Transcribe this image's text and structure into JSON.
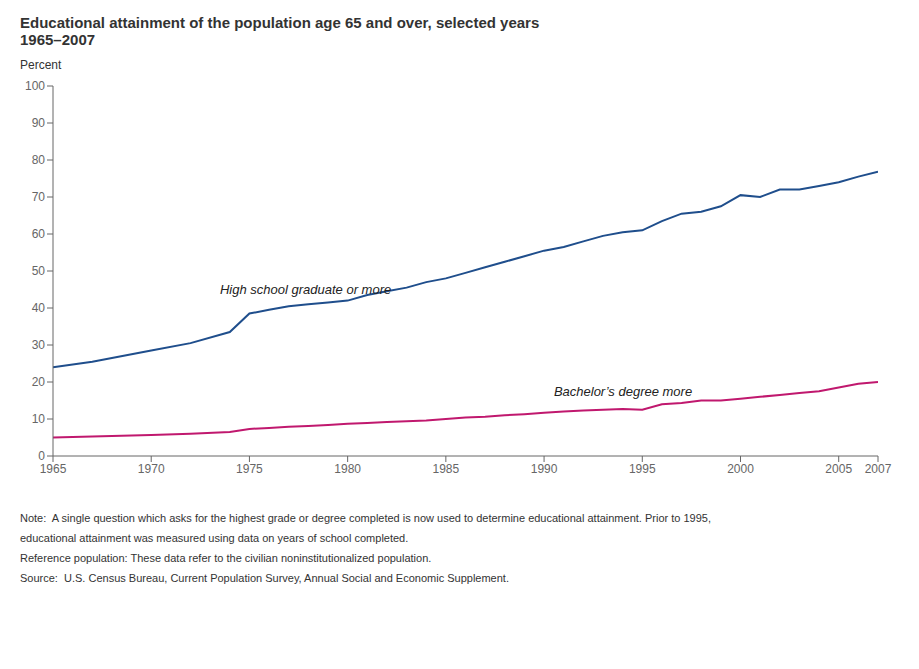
{
  "chart_data": {
    "type": "line",
    "title": "Educational attainment of the population age 65 and over, selected years",
    "subtitle": "1965–2007",
    "y_label": "Percent",
    "x": [
      1965,
      1967,
      1970,
      1972,
      1974,
      1975,
      1976,
      1977,
      1978,
      1979,
      1980,
      1981,
      1982,
      1983,
      1984,
      1985,
      1986,
      1987,
      1988,
      1989,
      1990,
      1991,
      1992,
      1993,
      1994,
      1995,
      1996,
      1997,
      1998,
      1999,
      2000,
      2001,
      2002,
      2003,
      2004,
      2005,
      2006,
      2007
    ],
    "series": [
      {
        "name": "High school graduate or more",
        "color": "#1f4e8c",
        "values": [
          24.0,
          25.5,
          28.5,
          30.5,
          33.5,
          38.5,
          39.5,
          40.5,
          41.0,
          41.5,
          42.0,
          43.5,
          44.5,
          45.5,
          47.0,
          48.0,
          49.5,
          51.0,
          52.5,
          54.0,
          55.5,
          56.5,
          58.0,
          59.5,
          60.5,
          61.0,
          63.5,
          65.5,
          66.0,
          67.5,
          70.5,
          70.0,
          72.0,
          72.0,
          73.0,
          74.0,
          75.5,
          76.8
        ]
      },
      {
        "name": "Bachelor’s degree more",
        "color": "#c0186e",
        "values": [
          5.0,
          5.3,
          5.7,
          6.0,
          6.5,
          7.3,
          7.6,
          7.9,
          8.1,
          8.4,
          8.7,
          8.9,
          9.2,
          9.4,
          9.6,
          10.0,
          10.4,
          10.6,
          11.0,
          11.3,
          11.7,
          12.0,
          12.3,
          12.5,
          12.7,
          12.5,
          14.0,
          14.3,
          15.0,
          15.0,
          15.5,
          16.0,
          16.5,
          17.0,
          17.5,
          18.5,
          19.5,
          20.0
        ]
      }
    ],
    "annotations": [
      {
        "text": "High school graduate or more",
        "x": 1973.5,
        "y": 43
      },
      {
        "text": "Bachelor’s degree more",
        "x": 1990.5,
        "y": 15.5
      }
    ],
    "notes": [
      "Note:  A single question which asks for the highest grade or degree completed is now used to determine educational attainment. Prior to 1995,",
      "educational attainment was measured using data on years of school completed.",
      "Reference population: These data refer to the civilian noninstitutionalized population.",
      "Source:  U.S. Census Bureau, Current Population Survey, Annual Social and Economic Supplement."
    ],
    "xlim": [
      1965,
      2007
    ],
    "ylim": [
      0,
      100
    ],
    "xticks": [
      1965,
      1970,
      1975,
      1980,
      1985,
      1990,
      1995,
      2000,
      2005,
      2007
    ],
    "yticks": [
      0,
      10,
      20,
      30,
      40,
      50,
      60,
      70,
      80,
      90,
      100
    ],
    "grid": false
  }
}
